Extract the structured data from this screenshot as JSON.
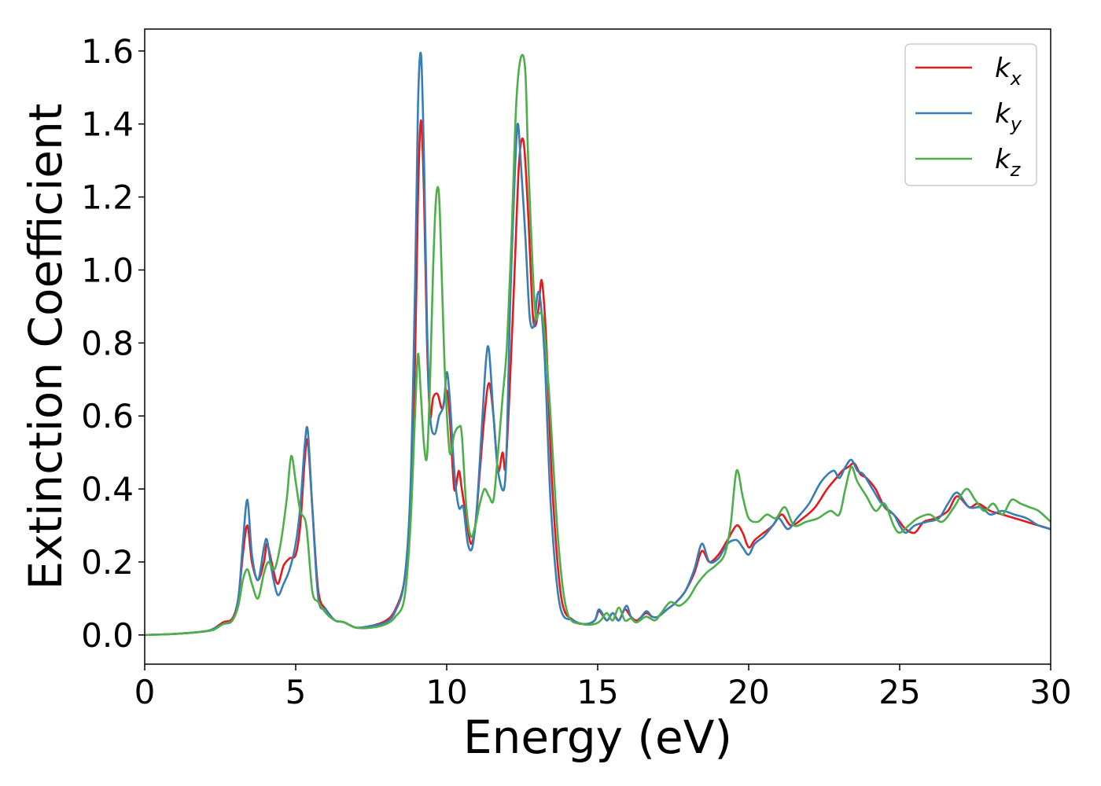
{
  "chart_data": {
    "type": "line",
    "xlabel": "Energy (eV)",
    "ylabel": "Extinction Coefficient",
    "xlim": [
      0,
      30
    ],
    "ylim": [
      -0.08,
      1.66
    ],
    "xticks": [
      0,
      5,
      10,
      15,
      20,
      25,
      30
    ],
    "yticks": [
      0.0,
      0.2,
      0.4,
      0.6,
      0.8,
      1.0,
      1.2,
      1.4,
      1.6
    ],
    "xtick_labels": [
      "0",
      "5",
      "10",
      "15",
      "20",
      "25",
      "30"
    ],
    "ytick_labels": [
      "0.0",
      "0.2",
      "0.4",
      "0.6",
      "0.8",
      "1.0",
      "1.2",
      "1.4",
      "1.6"
    ],
    "grid": false,
    "legend_position": "top-right",
    "series": [
      {
        "name": "k_x",
        "label_main": "k",
        "label_sub": "x",
        "color": "#e41a1c",
        "x": [
          0,
          1,
          2,
          2.3,
          2.6,
          2.9,
          3.1,
          3.25,
          3.4,
          3.55,
          3.75,
          3.95,
          4.05,
          4.2,
          4.4,
          4.6,
          4.8,
          5.0,
          5.15,
          5.3,
          5.4,
          5.55,
          5.75,
          6.0,
          6.3,
          6.6,
          7.0,
          7.5,
          8.0,
          8.3,
          8.6,
          8.8,
          8.95,
          9.05,
          9.15,
          9.25,
          9.35,
          9.45,
          9.55,
          9.7,
          9.85,
          10.0,
          10.1,
          10.25,
          10.4,
          10.5,
          10.65,
          10.8,
          10.95,
          11.1,
          11.25,
          11.4,
          11.55,
          11.7,
          11.85,
          11.95,
          12.1,
          12.25,
          12.4,
          12.55,
          12.7,
          12.85,
          12.95,
          13.05,
          13.15,
          13.3,
          13.5,
          13.8,
          14.2,
          14.6,
          14.9,
          15.05,
          15.3,
          15.5,
          15.7,
          15.9,
          16.1,
          16.3,
          16.6,
          16.8,
          17.0,
          17.3,
          17.6,
          17.9,
          18.2,
          18.45,
          18.7,
          19.0,
          19.3,
          19.6,
          19.8,
          20.0,
          20.2,
          20.5,
          20.8,
          21.1,
          21.4,
          21.8,
          22.2,
          22.6,
          22.9,
          23.1,
          23.3,
          23.5,
          23.7,
          23.9,
          24.2,
          24.5,
          24.8,
          25.0,
          25.2,
          25.5,
          25.8,
          26.2,
          26.6,
          26.9,
          27.3,
          27.6,
          28.0,
          28.4,
          28.8,
          29.2,
          29.6,
          30.0
        ],
        "y": [
          0.0,
          0.003,
          0.01,
          0.018,
          0.035,
          0.045,
          0.1,
          0.22,
          0.3,
          0.2,
          0.15,
          0.2,
          0.25,
          0.2,
          0.14,
          0.19,
          0.21,
          0.22,
          0.3,
          0.48,
          0.53,
          0.35,
          0.12,
          0.07,
          0.04,
          0.035,
          0.02,
          0.025,
          0.04,
          0.07,
          0.15,
          0.35,
          0.75,
          1.2,
          1.41,
          1.2,
          0.8,
          0.6,
          0.65,
          0.66,
          0.62,
          0.67,
          0.6,
          0.4,
          0.45,
          0.4,
          0.32,
          0.25,
          0.3,
          0.45,
          0.6,
          0.69,
          0.6,
          0.45,
          0.5,
          0.46,
          0.7,
          1.0,
          1.3,
          1.35,
          1.15,
          0.88,
          0.85,
          0.9,
          0.97,
          0.8,
          0.4,
          0.1,
          0.04,
          0.03,
          0.04,
          0.065,
          0.04,
          0.06,
          0.04,
          0.07,
          0.05,
          0.04,
          0.06,
          0.05,
          0.05,
          0.07,
          0.09,
          0.12,
          0.17,
          0.23,
          0.2,
          0.22,
          0.26,
          0.3,
          0.28,
          0.24,
          0.26,
          0.28,
          0.3,
          0.33,
          0.3,
          0.32,
          0.35,
          0.4,
          0.43,
          0.45,
          0.46,
          0.47,
          0.44,
          0.43,
          0.4,
          0.35,
          0.33,
          0.31,
          0.29,
          0.28,
          0.31,
          0.32,
          0.34,
          0.38,
          0.35,
          0.36,
          0.34,
          0.33,
          0.32,
          0.31,
          0.3,
          0.29
        ]
      },
      {
        "name": "k_y",
        "label_main": "k",
        "label_sub": "y",
        "color": "#377eb8",
        "x": [
          0,
          1,
          2,
          2.3,
          2.6,
          2.9,
          3.1,
          3.25,
          3.4,
          3.55,
          3.75,
          3.95,
          4.05,
          4.2,
          4.4,
          4.6,
          4.8,
          5.0,
          5.15,
          5.3,
          5.4,
          5.55,
          5.75,
          6.0,
          6.3,
          6.6,
          7.0,
          7.5,
          8.0,
          8.3,
          8.6,
          8.8,
          8.95,
          9.05,
          9.15,
          9.25,
          9.35,
          9.45,
          9.6,
          9.75,
          9.9,
          10.0,
          10.1,
          10.25,
          10.4,
          10.55,
          10.7,
          10.85,
          11.0,
          11.15,
          11.3,
          11.4,
          11.55,
          11.7,
          11.9,
          12.0,
          12.1,
          12.25,
          12.35,
          12.45,
          12.6,
          12.75,
          12.9,
          13.0,
          13.1,
          13.25,
          13.45,
          13.75,
          14.2,
          14.6,
          14.9,
          15.05,
          15.3,
          15.5,
          15.7,
          15.95,
          16.1,
          16.3,
          16.6,
          16.8,
          17.0,
          17.3,
          17.6,
          17.9,
          18.2,
          18.45,
          18.7,
          19.0,
          19.3,
          19.6,
          19.8,
          20.0,
          20.2,
          20.5,
          20.8,
          21.0,
          21.3,
          21.6,
          22.0,
          22.4,
          22.8,
          23.0,
          23.2,
          23.4,
          23.6,
          23.8,
          24.1,
          24.4,
          24.8,
          25.0,
          25.2,
          25.5,
          25.9,
          26.3,
          26.6,
          26.9,
          27.3,
          27.7,
          28.0,
          28.4,
          28.8,
          29.2,
          29.6,
          30.0
        ],
        "y": [
          0.0,
          0.003,
          0.01,
          0.018,
          0.03,
          0.04,
          0.1,
          0.25,
          0.37,
          0.22,
          0.15,
          0.24,
          0.26,
          0.18,
          0.11,
          0.14,
          0.18,
          0.25,
          0.35,
          0.52,
          0.56,
          0.35,
          0.1,
          0.07,
          0.04,
          0.035,
          0.02,
          0.025,
          0.035,
          0.065,
          0.15,
          0.4,
          0.95,
          1.45,
          1.59,
          1.3,
          0.85,
          0.6,
          0.55,
          0.6,
          0.63,
          0.72,
          0.65,
          0.45,
          0.35,
          0.35,
          0.25,
          0.24,
          0.35,
          0.55,
          0.75,
          0.78,
          0.6,
          0.45,
          0.4,
          0.55,
          0.9,
          1.25,
          1.4,
          1.3,
          1.1,
          0.87,
          0.85,
          0.93,
          0.92,
          0.75,
          0.35,
          0.08,
          0.04,
          0.03,
          0.04,
          0.07,
          0.04,
          0.06,
          0.04,
          0.08,
          0.05,
          0.035,
          0.065,
          0.05,
          0.05,
          0.07,
          0.09,
          0.12,
          0.18,
          0.25,
          0.2,
          0.21,
          0.25,
          0.26,
          0.24,
          0.22,
          0.25,
          0.27,
          0.3,
          0.32,
          0.29,
          0.32,
          0.36,
          0.42,
          0.45,
          0.43,
          0.46,
          0.48,
          0.45,
          0.44,
          0.4,
          0.36,
          0.33,
          0.3,
          0.28,
          0.3,
          0.31,
          0.32,
          0.36,
          0.39,
          0.35,
          0.35,
          0.33,
          0.34,
          0.33,
          0.32,
          0.3,
          0.29
        ]
      },
      {
        "name": "k_z",
        "label_main": "k",
        "label_sub": "z",
        "color": "#4daf4a",
        "x": [
          0,
          1,
          2,
          2.3,
          2.6,
          2.9,
          3.1,
          3.25,
          3.4,
          3.55,
          3.75,
          3.95,
          4.1,
          4.3,
          4.5,
          4.7,
          4.85,
          5.0,
          5.15,
          5.35,
          5.55,
          5.75,
          6.0,
          6.3,
          6.6,
          7.0,
          7.5,
          8.0,
          8.3,
          8.6,
          8.8,
          8.95,
          9.05,
          9.15,
          9.25,
          9.35,
          9.45,
          9.55,
          9.65,
          9.75,
          9.85,
          9.95,
          10.1,
          10.25,
          10.4,
          10.5,
          10.65,
          10.8,
          10.95,
          11.1,
          11.25,
          11.4,
          11.55,
          11.7,
          11.85,
          12.0,
          12.15,
          12.3,
          12.45,
          12.6,
          12.7,
          12.85,
          12.95,
          13.05,
          13.2,
          13.4,
          13.7,
          14.0,
          14.5,
          14.9,
          15.1,
          15.3,
          15.5,
          15.7,
          15.9,
          16.1,
          16.3,
          16.6,
          16.9,
          17.1,
          17.4,
          17.7,
          18.0,
          18.3,
          18.6,
          18.9,
          19.2,
          19.4,
          19.6,
          19.8,
          20.0,
          20.3,
          20.6,
          20.9,
          21.2,
          21.5,
          21.9,
          22.3,
          22.7,
          23.0,
          23.2,
          23.4,
          23.6,
          23.9,
          24.2,
          24.5,
          24.8,
          25.0,
          25.3,
          25.6,
          26.0,
          26.4,
          26.8,
          27.2,
          27.5,
          27.8,
          28.1,
          28.4,
          28.7,
          29.0,
          29.3,
          29.6,
          30.0
        ],
        "y": [
          0.0,
          0.003,
          0.01,
          0.015,
          0.03,
          0.04,
          0.08,
          0.15,
          0.18,
          0.14,
          0.1,
          0.17,
          0.2,
          0.18,
          0.25,
          0.37,
          0.49,
          0.42,
          0.34,
          0.3,
          0.12,
          0.09,
          0.06,
          0.04,
          0.035,
          0.02,
          0.02,
          0.03,
          0.05,
          0.1,
          0.3,
          0.6,
          0.77,
          0.65,
          0.52,
          0.49,
          0.7,
          1.0,
          1.2,
          1.2,
          0.95,
          0.7,
          0.5,
          0.55,
          0.57,
          0.55,
          0.35,
          0.27,
          0.3,
          0.36,
          0.4,
          0.38,
          0.37,
          0.5,
          0.65,
          0.8,
          1.1,
          1.45,
          1.58,
          1.55,
          1.3,
          1.0,
          0.87,
          0.88,
          0.86,
          0.65,
          0.25,
          0.06,
          0.03,
          0.03,
          0.04,
          0.06,
          0.04,
          0.075,
          0.04,
          0.045,
          0.035,
          0.05,
          0.04,
          0.06,
          0.09,
          0.08,
          0.1,
          0.14,
          0.17,
          0.19,
          0.22,
          0.3,
          0.45,
          0.38,
          0.32,
          0.31,
          0.33,
          0.32,
          0.35,
          0.3,
          0.31,
          0.32,
          0.34,
          0.33,
          0.4,
          0.46,
          0.42,
          0.38,
          0.34,
          0.36,
          0.3,
          0.28,
          0.3,
          0.32,
          0.33,
          0.31,
          0.35,
          0.4,
          0.37,
          0.34,
          0.36,
          0.33,
          0.37,
          0.36,
          0.35,
          0.34,
          0.31
        ]
      }
    ]
  }
}
